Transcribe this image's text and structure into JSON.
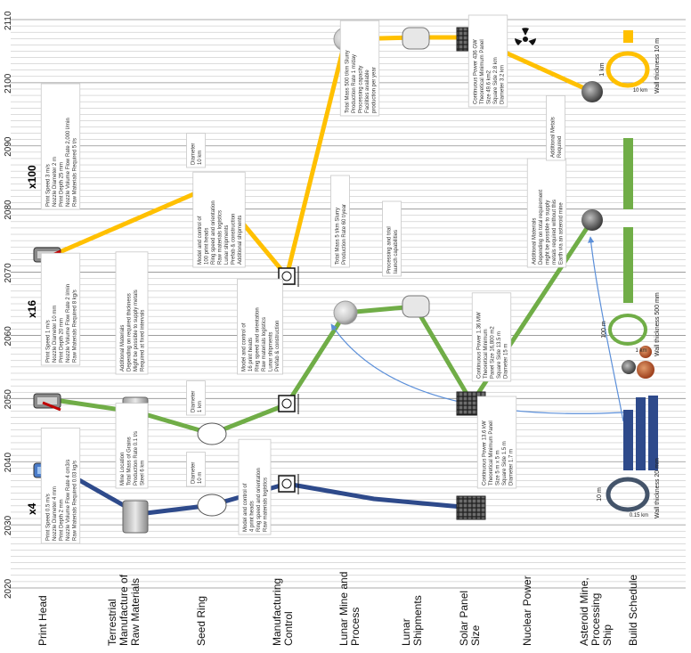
{
  "years": [
    "2020",
    "2030",
    "2040",
    "2050",
    "2060",
    "2070",
    "2080",
    "2090",
    "2100",
    "2110"
  ],
  "columns": [
    "Print Head",
    "Terrestrial Manufacture of Raw Materials",
    "Seed Ring",
    "Manufacturing Control",
    "Lunar Mine and Process",
    "Lunar Shipments",
    "Solar Panel Size",
    "Nuclear Power",
    "Asteroid Mine, Processing Ship",
    "Build Schedule"
  ],
  "colors": {
    "blue": "#2e4a8b",
    "green": "#70ad47",
    "orange": "#ffc000",
    "grid": "#b9b9b9"
  },
  "multipliers": [
    "x4",
    "x16",
    "x100"
  ],
  "callouts": {
    "ph1": [
      "Print Speed 0.5 m/s",
      "Nozzle Diameter 4 mm",
      "Print Depth 2 mm",
      "Nozzle Volume Flow Rate 4 cm3/s",
      "Raw Materials Required 0.03 kg/s"
    ],
    "ph2": [
      "Print Speed 1 m/s",
      "Nozzle Diameter 10 mm",
      "Print Depth 20 mm",
      "Nozzle Volume Flow Rate 2 l/min",
      "Raw Materials Required 8 kg/s"
    ],
    "ph3": [
      "Print Speed 3 m/s",
      "Nozzle Diameter 2 m",
      "Print Depth 25 mm",
      "Nozzle Volume Flow Rate 2,000 l/min",
      "Raw Materials Required 5 t/s"
    ],
    "tm1": [
      "Mine Location",
      "Total Mass of Grains",
      "Production Rate 0.1 t/s",
      "Steel 6 km"
    ],
    "tm2": [
      "Additional Materials",
      "Depending on required thickness",
      "Might be possible to supply metals",
      "Required at fixed intervals"
    ],
    "sr1": [
      "Diameter",
      "10 m"
    ],
    "sr2": [
      "Diameter",
      "1 km"
    ],
    "sr3": [
      "Diameter",
      "10 km"
    ],
    "mc1": [
      "Model and control of",
      "4 print heads",
      "Ring speed and orientation",
      "Raw materials logistics"
    ],
    "mc2": [
      "Model and control of",
      "16 print heads",
      "Ring speed and orientation",
      "Raw materials logistics",
      "Lunar shipments",
      "Prefab & construction"
    ],
    "mc3": [
      "Model and control of",
      "100 print heads",
      "Ring speed and orientation",
      "Raw materials logistics",
      "Lunar shipments",
      "Prefab & construction",
      "Additional shipments"
    ],
    "lm1": [
      "Total Mass 5 t/km Slurry",
      "Production Rate 60 t/year"
    ],
    "lm2": [
      "Total Mass 500 t/km Slurry",
      "Production Rate 1 m/day",
      "Processing capacity",
      "Facilities available",
      "production per year"
    ],
    "ls1": [
      "Processing and trial",
      "launch capabilities"
    ],
    "sp1": [
      "Continuous Power 13.6 kW",
      "Theoretical Minimum Panel",
      "Size 5 m x 5 m",
      "Square Side 1.5 m",
      "Diameter 1.7 m"
    ],
    "sp2": [
      "Continuous Power 1.36 MW",
      "Theoretical Minimum",
      "Panel Size 16,800 m2",
      "Square Side 13.5 m",
      "Diameter 15 m"
    ],
    "sp3": [
      "Continuous Power 436 GW",
      "Theoretical Minimum Panel",
      "Size 49.6 km2",
      "Square Side 2.8 km",
      "Diameter 3.2 km"
    ],
    "am1": [
      "Additional Materials",
      "Depending on total requirement",
      "might be possible to supply",
      "metals required without this",
      "Earth via an asteroid mine"
    ],
    "am2": [
      "Additional Metals",
      "Required"
    ]
  },
  "build": {
    "ring1": [
      "10 m",
      "Wall thickness 20 mm",
      "0.15 km"
    ],
    "ring2": [
      "100 m",
      "Wall thickness 500 mm",
      "1 km"
    ],
    "ring3": [
      "1 km",
      "Wall thickness 10 m",
      "10 km"
    ]
  }
}
